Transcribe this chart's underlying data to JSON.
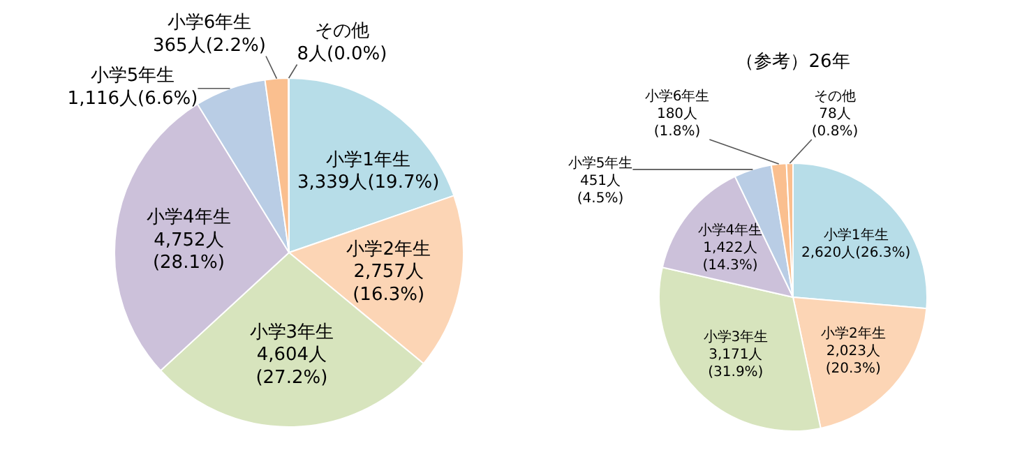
{
  "chart_data": [
    {
      "type": "pie",
      "categories": [
        "小学1年生",
        "小学2年生",
        "小学3年生",
        "小学4年生",
        "小学5年生",
        "小学6年生",
        "その他"
      ],
      "values": [
        3339,
        2757,
        4604,
        4752,
        1116,
        365,
        8
      ],
      "colors": [
        "#b7dde8",
        "#fcd5b5",
        "#d7e4bd",
        "#ccc1da",
        "#b9cde5",
        "#fabf8f",
        "#ffffff"
      ],
      "value_labels": [
        "3,339人(19.7%)",
        "2,757人\n(16.3%)",
        "4,604人\n(27.2%)",
        "4,752人\n(28.1%)",
        "1,116人(6.6%)",
        "365人(2.2%)",
        "8人(0.0%)"
      ]
    },
    {
      "type": "pie",
      "title": "（参考）26年",
      "categories": [
        "小学1年生",
        "小学2年生",
        "小学3年生",
        "小学4年生",
        "小学5年生",
        "小学6年生",
        "その他"
      ],
      "values": [
        2620,
        2023,
        3171,
        1422,
        451,
        180,
        78
      ],
      "colors": [
        "#b7dde8",
        "#fcd5b5",
        "#d7e4bd",
        "#ccc1da",
        "#b9cde5",
        "#fabf8f",
        "#fabf8f"
      ],
      "value_labels": [
        "2,620人(26.3%)",
        "2,023人\n(20.3%)",
        "3,171人\n(31.9%)",
        "1,422人\n(14.3%)",
        "451人\n(4.5%)",
        "180人\n(1.8%)",
        "78人\n(0.8%)"
      ]
    }
  ]
}
